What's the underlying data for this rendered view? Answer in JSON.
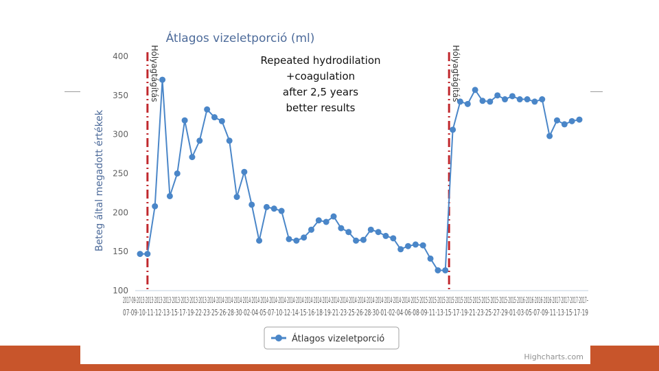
{
  "slide": {
    "band_color": "#c8552b",
    "line_color": "#9a9a9a"
  },
  "chart_data": {
    "type": "line",
    "title": "Átlagos vizeletporció (ml)",
    "ylabel": "Beteg által megadott értékek",
    "xlabel": "",
    "ylim": [
      100,
      400
    ],
    "yticks": [
      100,
      150,
      200,
      250,
      300,
      350,
      400
    ],
    "grid": false,
    "legend_position": "bottom-center",
    "series_color": "#4a86c8",
    "series": [
      {
        "name": "Átlagos vizeletporció",
        "values": [
          147,
          147,
          208,
          370,
          221,
          250,
          318,
          271,
          292,
          332,
          322,
          317,
          292,
          220,
          252,
          210,
          164,
          207,
          205,
          202,
          166,
          164,
          168,
          178,
          190,
          188,
          195,
          180,
          175,
          164,
          165,
          178,
          175,
          170,
          167,
          153,
          157,
          159,
          158,
          141,
          126,
          126,
          306,
          342,
          339,
          357,
          343,
          342,
          350,
          345,
          349,
          345,
          345,
          342,
          345,
          298,
          318,
          313,
          317,
          319
        ]
      }
    ],
    "x_tick_rows": [
      "2017·09·2013·2013·2013·2013·2013·2013·2013·2013·2014·2014·2014·2014·2014·2014·2014·2014·2014·2014·2014·2014·2014·2014·2014·2014·2014·2014·2014·2014·2014·2014·2014·2015·2015·2015·2015·2015·2015·2015·2015·2015·2015·2015·2015·2016·2016·2016·2016·2017·2017·2017·2017–",
      "07·09·10·11·12·13·15·17·19·22·23·25·26·28·30·02·04·05·07·10·12·14·15·16·18·19·21·23·25·26·28·30·01·02·04·06·08·09·11·13·15·17·19·21·23·25·27·29·01·03·05·07·09·11·13·15·17·19"
    ],
    "annotations": {
      "event_lines": [
        {
          "label": "Hólyagtágítás",
          "x_index": 1
        },
        {
          "label": "Hólyagtágítás",
          "x_index": 41.5
        }
      ],
      "note_lines": [
        "Repeated hydrodilation",
        "+coagulation",
        "after 2,5 years",
        "better results"
      ]
    },
    "credits": "Highcharts.com"
  }
}
